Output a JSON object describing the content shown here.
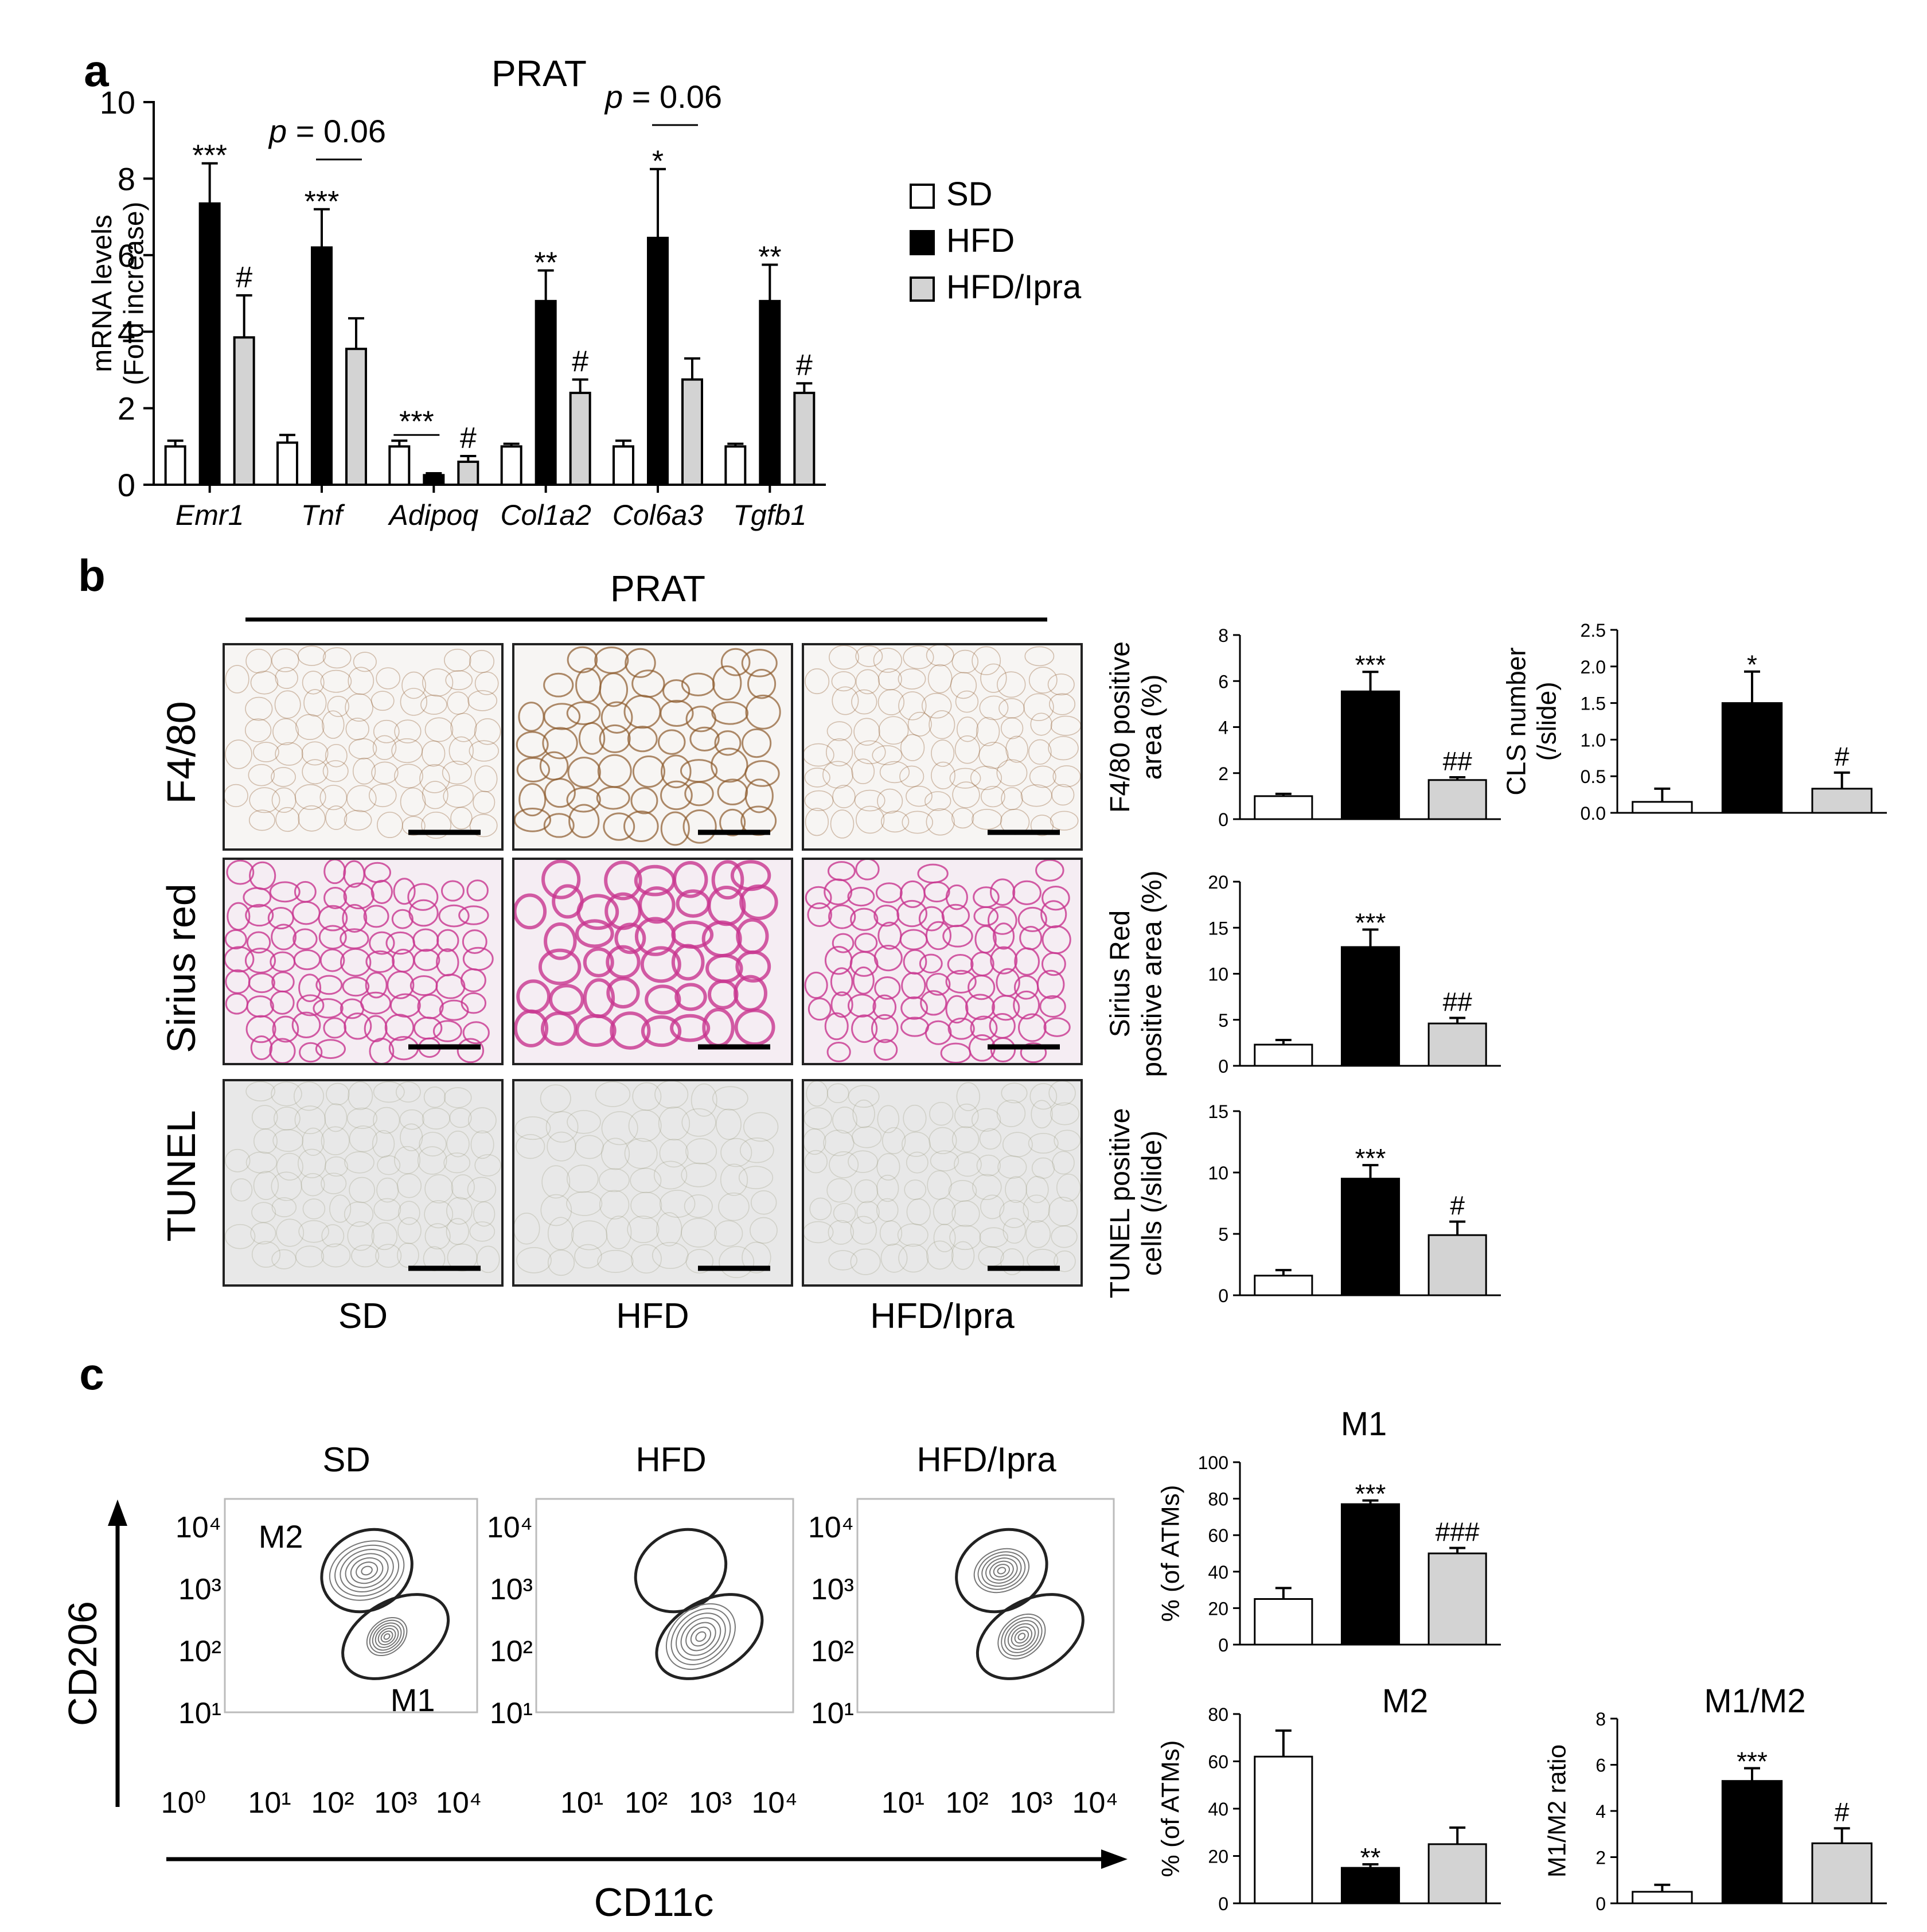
{
  "panel_labels": {
    "a": "a",
    "b": "b",
    "c": "c"
  },
  "legend": [
    {
      "label": "SD",
      "color": "#ffffff"
    },
    {
      "label": "HFD",
      "color": "#000000"
    },
    {
      "label": "HFD/Ipra",
      "color": "#d3d3d3"
    }
  ],
  "panel_b": {
    "title": "PRAT",
    "rows": [
      "F4/80",
      "Sirius red",
      "TUNEL"
    ],
    "columns": [
      "SD",
      "HFD",
      "HFD/Ipra"
    ],
    "stain_colors": {
      "F4/80": "#8b5a2b",
      "Sirius red": "#c8358f",
      "TUNEL": "#8a8a6a"
    },
    "background_colors": {
      "F4/80": "#f7f5f3",
      "Sirius red": "#f5edf3",
      "TUNEL": "#e8e8e8"
    }
  },
  "panel_c": {
    "columns": [
      "SD",
      "HFD",
      "HFD/Ipra"
    ],
    "gate_labels": {
      "upper": "M2",
      "lower": "M1"
    },
    "y_axis_label": "CD206",
    "x_axis_label": "CD11c",
    "y_ticks": [
      "10⁴",
      "10³",
      "10²",
      "10¹",
      "10⁰"
    ],
    "x_ticks": [
      "10¹",
      "10²",
      "10³",
      "10⁴"
    ],
    "m2_density": [
      0.95,
      0.15,
      0.7
    ],
    "m1_density": [
      0.55,
      0.95,
      0.65
    ]
  },
  "chart_data": [
    {
      "id": "a",
      "type": "bar",
      "title": "PRAT",
      "ylabel": "mRNA levels\n(Fold increase)",
      "ylim": [
        0,
        10
      ],
      "yticks": [
        0,
        2,
        4,
        6,
        8,
        10
      ],
      "categories": [
        "Emr1",
        "Tnf",
        "Adipoq",
        "Col1a2",
        "Col6a3",
        "Tgfb1"
      ],
      "series": [
        {
          "name": "SD",
          "values": [
            1.0,
            1.1,
            1.0,
            1.0,
            1.0,
            1.0
          ],
          "errors": [
            0.15,
            0.2,
            0.15,
            0.07,
            0.15,
            0.07
          ]
        },
        {
          "name": "HFD",
          "values": [
            7.35,
            6.2,
            0.25,
            4.8,
            6.45,
            4.8
          ],
          "errors": [
            1.05,
            1.0,
            0.05,
            0.8,
            1.8,
            0.95
          ]
        },
        {
          "name": "HFD/Ipra",
          "values": [
            3.85,
            3.55,
            0.6,
            2.4,
            2.75,
            2.4
          ],
          "errors": [
            1.1,
            0.8,
            0.15,
            0.35,
            0.55,
            0.25
          ]
        }
      ],
      "annotations": [
        {
          "category": 0,
          "series": 1,
          "text": "***"
        },
        {
          "category": 0,
          "series": 2,
          "text": "#"
        },
        {
          "category": 1,
          "series": 1,
          "text": "***"
        },
        {
          "category": 2,
          "series": 2,
          "text": "#"
        },
        {
          "category": 3,
          "series": 1,
          "text": "**"
        },
        {
          "category": 3,
          "series": 2,
          "text": "#"
        },
        {
          "category": 4,
          "series": 1,
          "text": "*"
        },
        {
          "category": 5,
          "series": 1,
          "text": "**"
        },
        {
          "category": 5,
          "series": 2,
          "text": "#"
        }
      ],
      "brackets": [
        {
          "category": 1,
          "from_series": 1,
          "to_series": 2,
          "y": 8.5,
          "text": "p = 0.06"
        },
        {
          "category": 4,
          "from_series": 1,
          "to_series": 2,
          "y": 9.4,
          "text": "p = 0.06"
        },
        {
          "category": 2,
          "from_series": 0,
          "to_series": 1,
          "y": 1.3,
          "text": "***"
        }
      ]
    },
    {
      "id": "b-f480",
      "type": "bar",
      "ylabel": "F4/80 positive\narea (%)",
      "ylim": [
        0,
        8
      ],
      "yticks": [
        0,
        2,
        4,
        6,
        8
      ],
      "categories": [
        "SD",
        "HFD",
        "HFD/Ipra"
      ],
      "values": [
        1.0,
        5.55,
        1.7
      ],
      "errors": [
        0.1,
        0.85,
        0.12
      ],
      "annotations": [
        "",
        "***",
        "##"
      ]
    },
    {
      "id": "b-cls",
      "type": "bar",
      "ylabel": "CLS number\n(/slide)",
      "ylim": [
        0,
        2.5
      ],
      "yticks": [
        0.0,
        0.5,
        1.0,
        1.5,
        2.0,
        2.5
      ],
      "ytick_labels": [
        "0.0",
        "0.5",
        "1.0",
        "1.5",
        "2.0",
        "2.5"
      ],
      "categories": [
        "SD",
        "HFD",
        "HFD/Ipra"
      ],
      "values": [
        0.15,
        1.5,
        0.33
      ],
      "errors": [
        0.18,
        0.43,
        0.22
      ],
      "annotations": [
        "",
        "*",
        "#"
      ]
    },
    {
      "id": "b-sirius",
      "type": "bar",
      "ylabel": "Sirius Red\npositive area (%)",
      "ylim": [
        0,
        20
      ],
      "yticks": [
        0,
        5,
        10,
        15,
        20
      ],
      "categories": [
        "SD",
        "HFD",
        "HFD/Ipra"
      ],
      "values": [
        2.3,
        12.9,
        4.6
      ],
      "errors": [
        0.5,
        1.9,
        0.6
      ],
      "annotations": [
        "",
        "***",
        "##"
      ]
    },
    {
      "id": "b-tunel",
      "type": "bar",
      "ylabel": "TUNEL positive\ncells (/slide)",
      "ylim": [
        0,
        15
      ],
      "yticks": [
        0,
        5,
        10,
        15
      ],
      "categories": [
        "SD",
        "HFD",
        "HFD/Ipra"
      ],
      "values": [
        1.6,
        9.5,
        4.9
      ],
      "errors": [
        0.45,
        1.1,
        1.1
      ],
      "annotations": [
        "",
        "***",
        "#"
      ]
    },
    {
      "id": "c-m1",
      "type": "bar",
      "title": "M1",
      "ylabel": "% (of ATMs)",
      "ylim": [
        0,
        100
      ],
      "yticks": [
        0,
        20,
        40,
        60,
        80,
        100
      ],
      "categories": [
        "SD",
        "HFD",
        "HFD/Ipra"
      ],
      "values": [
        25,
        77,
        50
      ],
      "errors": [
        6,
        2,
        3
      ],
      "annotations": [
        "",
        "***",
        "###"
      ]
    },
    {
      "id": "c-m2",
      "type": "bar",
      "title": "M2",
      "ylabel": "% (of ATMs)",
      "ylim": [
        0,
        80
      ],
      "yticks": [
        0,
        20,
        40,
        60,
        80
      ],
      "categories": [
        "SD",
        "HFD",
        "HFD/Ipra"
      ],
      "values": [
        62,
        15,
        25
      ],
      "errors": [
        11,
        1.5,
        7
      ],
      "annotations": [
        "",
        "**",
        ""
      ]
    },
    {
      "id": "c-ratio",
      "type": "bar",
      "title": "M1/M2",
      "ylabel": "M1/M2 ratio",
      "ylim": [
        0,
        8
      ],
      "yticks": [
        0,
        2,
        4,
        6,
        8
      ],
      "categories": [
        "SD",
        "HFD",
        "HFD/Ipra"
      ],
      "values": [
        0.5,
        5.3,
        2.6
      ],
      "errors": [
        0.3,
        0.55,
        0.65
      ],
      "annotations": [
        "",
        "***",
        "#"
      ]
    }
  ]
}
